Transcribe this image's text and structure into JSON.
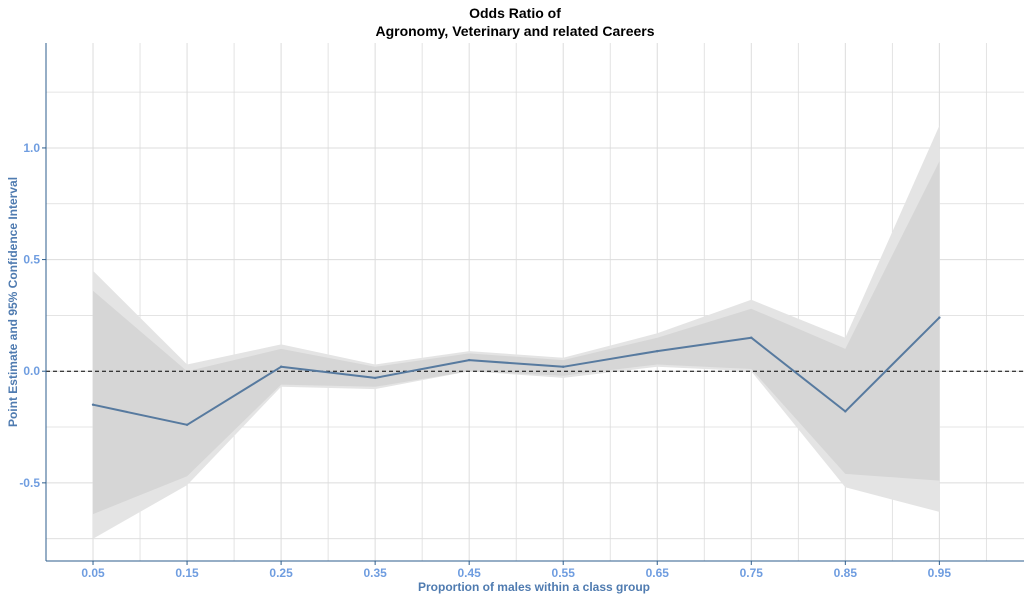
{
  "chart_data": {
    "type": "line",
    "title_lines": [
      "Odds Ratio of",
      "Agronomy, Veterinary and related Careers"
    ],
    "xlabel": "Proportion of males within a class group",
    "ylabel": "Point Estimate and 95% Confidence Interval",
    "x": [
      0.05,
      0.15,
      0.25,
      0.35,
      0.45,
      0.55,
      0.65,
      0.75,
      0.85,
      0.95
    ],
    "x_tick_labels": [
      "0.05",
      "0.15",
      "0.25",
      "0.35",
      "0.45",
      "0.55",
      "0.65",
      "0.75",
      "0.85",
      "0.95"
    ],
    "y_ticks": [
      -0.5,
      0.0,
      0.5,
      1.0
    ],
    "y_tick_labels": [
      "-0.5",
      "0.0",
      "0.5",
      "1.0"
    ],
    "xlim": [
      0.0,
      1.04
    ],
    "ylim": [
      -0.85,
      1.47
    ],
    "reference_line": 0.0,
    "grid": true,
    "series": [
      {
        "values": [
          -0.15,
          -0.24,
          0.02,
          -0.03,
          0.05,
          0.02,
          0.09,
          0.15,
          -0.18,
          0.24
        ]
      }
    ],
    "bands": [
      {
        "kind": "outer",
        "lower": [
          -0.75,
          -0.51,
          -0.07,
          -0.08,
          0.0,
          -0.03,
          0.02,
          0.0,
          -0.52,
          -0.63
        ],
        "upper": [
          0.45,
          0.03,
          0.12,
          0.03,
          0.09,
          0.06,
          0.17,
          0.32,
          0.15,
          1.1
        ]
      },
      {
        "kind": "inner",
        "lower": [
          -0.64,
          -0.47,
          -0.06,
          -0.07,
          0.0,
          -0.02,
          0.03,
          0.01,
          -0.46,
          -0.49
        ],
        "upper": [
          0.36,
          0.0,
          0.1,
          0.02,
          0.08,
          0.05,
          0.15,
          0.28,
          0.1,
          0.94
        ]
      }
    ],
    "colors": {
      "line": "#577a9f",
      "outer_band": "#e4e4e4",
      "inner_band": "#d6d6d6",
      "grid": "#dcdcdc",
      "axis": "#2d5d8c",
      "tick_label": "#6f9de0",
      "axis_label": "#4f7bb0",
      "reference": "#000000"
    }
  }
}
